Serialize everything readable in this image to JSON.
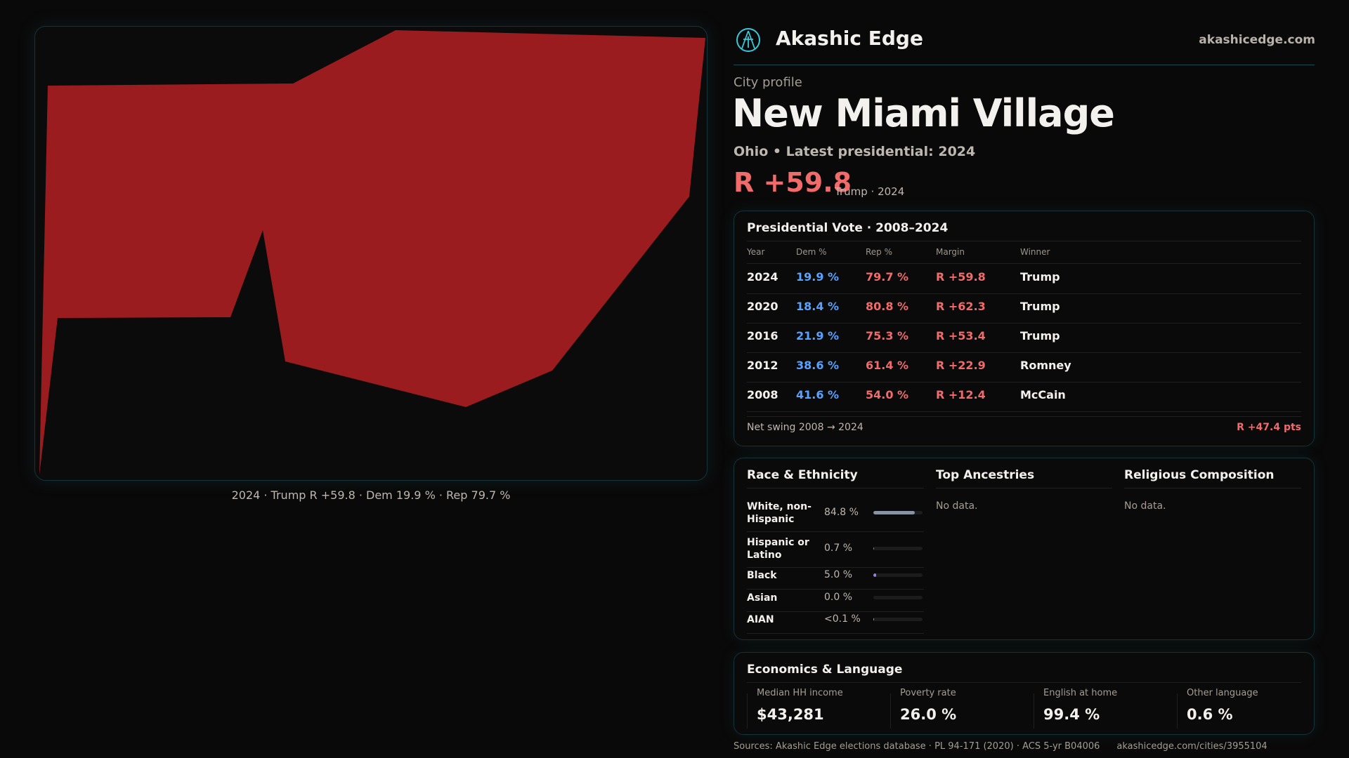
{
  "brand": {
    "name": "Akashic Edge",
    "site": "akashicedge.com",
    "logo_icon": "akashic-edge-logo-icon"
  },
  "map": {
    "fill": "#9b1c1f",
    "caption": "2024 · Trump R +59.8 · Dem 19.9 % · Rep 79.7 %"
  },
  "city": {
    "kicker": "City profile",
    "name": "New Miami Village",
    "subtitle": "Ohio • Latest presidential: 2024",
    "margin": "R +59.8",
    "margin_note": "Trump · 2024"
  },
  "vote": {
    "title": "Presidential Vote · 2008–2024",
    "headers": [
      "Year",
      "Dem %",
      "Rep %",
      "Margin",
      "Winner"
    ],
    "rows": [
      [
        "2024",
        "19.9 %",
        "79.7 %",
        "R +59.8",
        "Trump"
      ],
      [
        "2020",
        "18.4 %",
        "80.8 %",
        "R +62.3",
        "Trump"
      ],
      [
        "2016",
        "21.9 %",
        "75.3 %",
        "R +53.4",
        "Trump"
      ],
      [
        "2012",
        "38.6 %",
        "61.4 %",
        "R +22.9",
        "Romney"
      ],
      [
        "2008",
        "41.6 %",
        "54.0 %",
        "R +12.4",
        "McCain"
      ]
    ],
    "swing_label": "Net swing 2008 → 2024",
    "swing_value": "R +47.4 pts"
  },
  "race": {
    "title": "Race & Ethnicity",
    "rows": [
      {
        "label": "White, non-Hispanic",
        "value": "84.8 %",
        "pct": 84.8,
        "color": "#8893a6"
      },
      {
        "label": "Hispanic or Latino",
        "value": "0.7 %",
        "pct": 0.7,
        "color": "#b07a4f"
      },
      {
        "label": "Black",
        "value": "5.0 %",
        "pct": 5.0,
        "color": "#9a7fe0"
      },
      {
        "label": "Asian",
        "value": "0.0 %",
        "pct": 0.0,
        "color": "#4fb0a0"
      },
      {
        "label": "AIAN",
        "value": "<0.1 %",
        "pct": 0.05,
        "color": "#c0a050"
      }
    ]
  },
  "ancestry": {
    "title": "Top Ancestries",
    "empty": "No data."
  },
  "religion": {
    "title": "Religious Composition",
    "empty": "No data."
  },
  "econ": {
    "title": "Economics & Language",
    "items": [
      {
        "label": "Median HH income",
        "value": "$43,281"
      },
      {
        "label": "Poverty rate",
        "value": "26.0 %"
      },
      {
        "label": "English at home",
        "value": "99.4 %"
      },
      {
        "label": "Other language",
        "value": "0.6 %"
      }
    ]
  },
  "footer": {
    "sources": "Sources: Akashic Edge elections database · PL 94-171 (2020) · ACS 5-yr B04006",
    "url": "akashicedge.com/cities/3955104"
  }
}
